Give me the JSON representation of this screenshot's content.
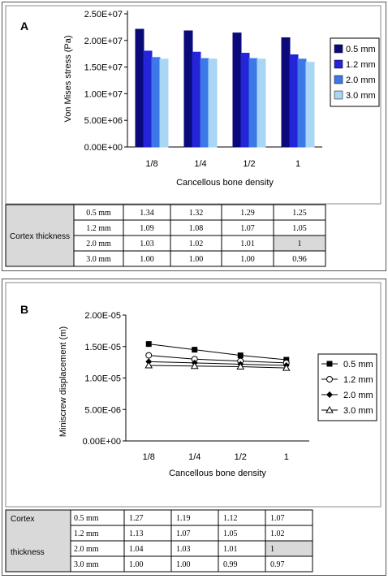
{
  "chart_data": [
    {
      "type": "bar",
      "panel_label": "A",
      "categories": [
        "1/8",
        "1/4",
        "1/2",
        "1"
      ],
      "series": [
        {
          "name": "0.5 mm",
          "color": "#0a0a7a",
          "values": [
            22100000,
            21800000,
            21400000,
            20500000
          ]
        },
        {
          "name": "1.2 mm",
          "color": "#2424d8",
          "values": [
            18000000,
            17800000,
            17600000,
            17300000
          ]
        },
        {
          "name": "2.0 mm",
          "color": "#3c78e6",
          "values": [
            16800000,
            16600000,
            16600000,
            16500000
          ]
        },
        {
          "name": "3.0 mm",
          "color": "#a9d6f5",
          "values": [
            16500000,
            16500000,
            16500000,
            15900000
          ]
        }
      ],
      "xlabel": "Cancellous bone density",
      "ylabel": "Von Mises stress (Pa)",
      "ylim": [
        0,
        25000000
      ],
      "yticks": [
        "0.00E+00",
        "5.00E+06",
        "1.00E+07",
        "1.50E+07",
        "2.00E+07",
        "2.50E+07"
      ],
      "grid": false,
      "legend_position": "right"
    },
    {
      "type": "line",
      "panel_label": "B",
      "categories": [
        "1/8",
        "1/4",
        "1/2",
        "1"
      ],
      "series": [
        {
          "name": "0.5 mm",
          "marker": "filled-square",
          "values": [
            1.54e-05,
            1.45e-05,
            1.36e-05,
            1.29e-05
          ]
        },
        {
          "name": "1.2 mm",
          "marker": "open-circle",
          "values": [
            1.36e-05,
            1.3e-05,
            1.27e-05,
            1.24e-05
          ]
        },
        {
          "name": "2.0 mm",
          "marker": "filled-diamond",
          "values": [
            1.26e-05,
            1.24e-05,
            1.22e-05,
            1.2e-05
          ]
        },
        {
          "name": "3.0 mm",
          "marker": "open-triangle",
          "values": [
            1.2e-05,
            1.19e-05,
            1.18e-05,
            1.16e-05
          ]
        }
      ],
      "xlabel": "Cancellous bone density",
      "ylabel": "Miniscrew displacement (m)",
      "ylim": [
        0,
        2e-05
      ],
      "yticks": [
        "0.00E+00",
        "5.00E-06",
        "1.00E-05",
        "1.50E-05",
        "2.00E-05"
      ],
      "grid": false,
      "legend_position": "right"
    }
  ],
  "tables": [
    {
      "row_group_label": "Cortex thickness",
      "rows": [
        {
          "label": "0.5 mm",
          "cells": [
            "1.34",
            "1.32",
            "1.29",
            "1.25"
          ]
        },
        {
          "label": "1.2 mm",
          "cells": [
            "1.09",
            "1.08",
            "1.07",
            "1.05"
          ]
        },
        {
          "label": "2.0 mm",
          "cells": [
            "1.03",
            "1.02",
            "1.01",
            "1"
          ]
        },
        {
          "label": "3.0 mm",
          "cells": [
            "1.00",
            "1.00",
            "1.00",
            "0.96"
          ]
        }
      ],
      "highlight_cell": [
        2,
        3
      ]
    },
    {
      "row_group_label_lines": [
        "Cortex",
        "thickness"
      ],
      "rows": [
        {
          "label": "0.5 mm",
          "cells": [
            "1.27",
            "1.19",
            "1.12",
            "1.07"
          ]
        },
        {
          "label": "1.2 mm",
          "cells": [
            "1.13",
            "1.07",
            "1.05",
            "1.02"
          ]
        },
        {
          "label": "2.0 mm",
          "cells": [
            "1.04",
            "1.03",
            "1.01",
            "1"
          ]
        },
        {
          "label": "3.0 mm",
          "cells": [
            "1.00",
            "1.00",
            "0.99",
            "0.97"
          ]
        }
      ],
      "highlight_cell": [
        2,
        3
      ]
    }
  ]
}
